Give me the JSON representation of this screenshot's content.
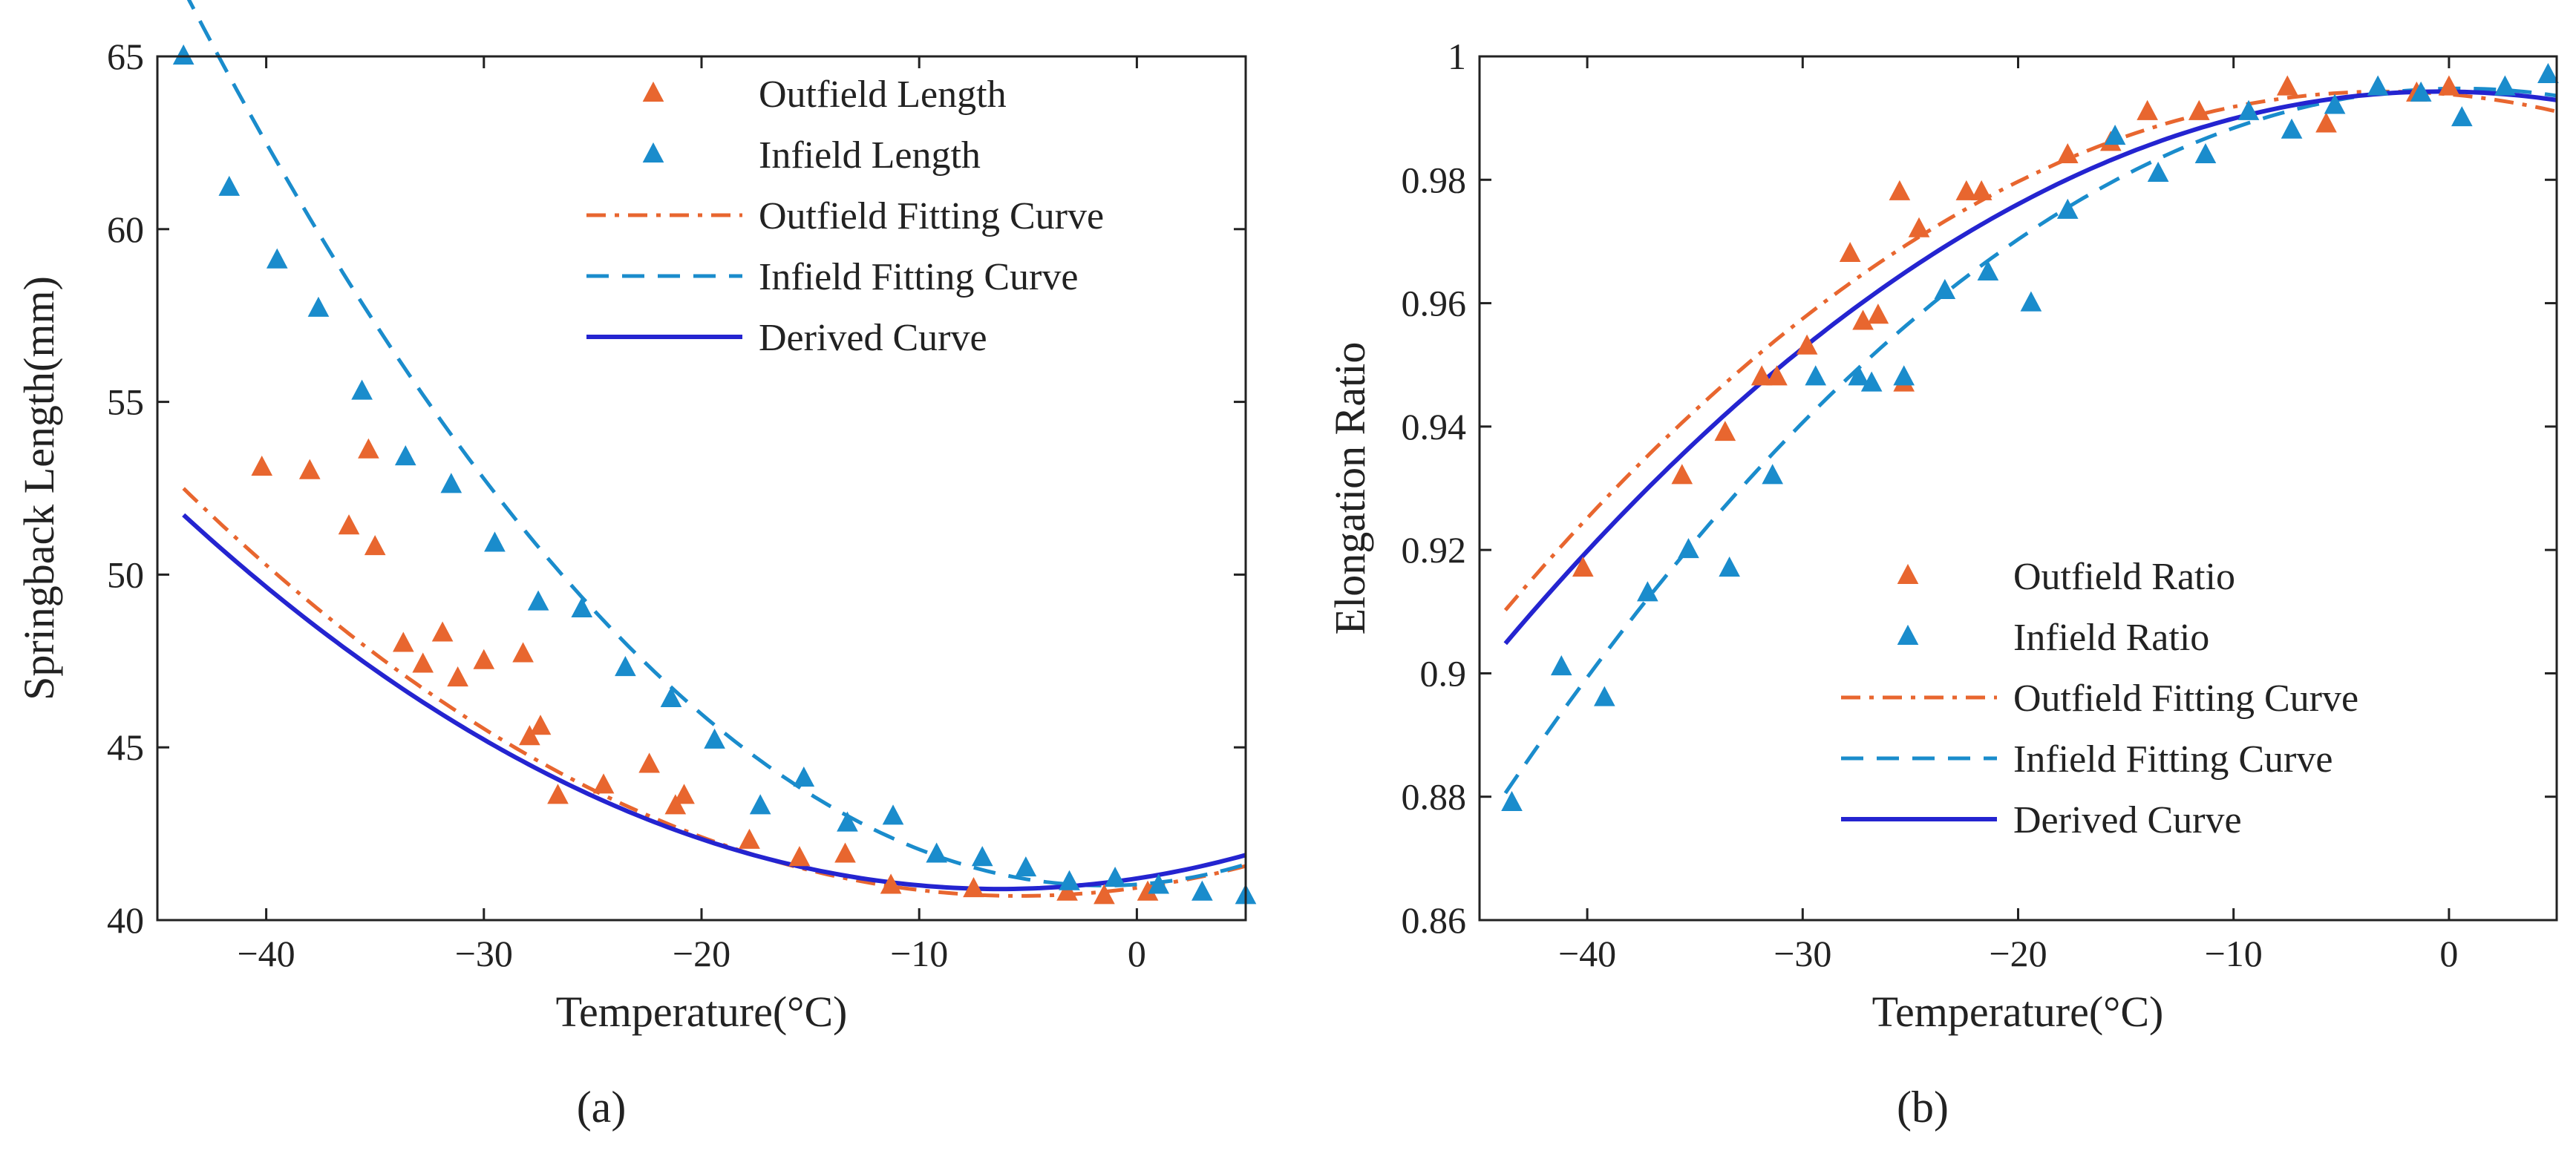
{
  "chart_data": [
    {
      "type": "scatter",
      "panel_label": "(a)",
      "xlabel": "Temperature(°C)",
      "ylabel": "Springback Length(mm)",
      "xlim": [
        -45,
        5
      ],
      "ylim": [
        40,
        65
      ],
      "xticks": [
        -40,
        -30,
        -20,
        -10,
        0
      ],
      "yticks": [
        40,
        45,
        50,
        55,
        60,
        65
      ],
      "legend_position": "top-right",
      "series": [
        {
          "name": "Outfield Length",
          "kind": "markers",
          "color": "#e8662f",
          "x": [
            -40.2,
            -38,
            -36.2,
            -35.3,
            -35,
            -33.7,
            -32.8,
            -31.9,
            -31.2,
            -30,
            -28.2,
            -27.9,
            -27.4,
            -26.6,
            -24.5,
            -22.4,
            -21.2,
            -20.8,
            -17.8,
            -15.5,
            -13.4,
            -11.3,
            -7.5,
            -3.2,
            -1.5,
            0.5
          ],
          "y": [
            53.1,
            53,
            51.4,
            53.6,
            50.8,
            48,
            47.4,
            48.3,
            47,
            47.5,
            47.7,
            45.3,
            45.6,
            43.6,
            43.9,
            44.5,
            43.3,
            43.6,
            42.3,
            41.8,
            41.9,
            41,
            40.9,
            40.8,
            40.7,
            40.8
          ]
        },
        {
          "name": "Infield Length",
          "kind": "markers",
          "color": "#1a8ccc",
          "x": [
            -43.8,
            -41.7,
            -39.5,
            -37.6,
            -35.6,
            -33.6,
            -31.5,
            -29.5,
            -27.5,
            -25.5,
            -23.5,
            -21.4,
            -19.4,
            -17.3,
            -15.3,
            -13.3,
            -11.2,
            -9.2,
            -7.1,
            -5.1,
            -3.1,
            -1,
            1,
            3,
            5
          ],
          "y": [
            65,
            61.2,
            59.1,
            57.7,
            55.3,
            53.4,
            52.6,
            50.9,
            49.2,
            49,
            47.3,
            46.4,
            45.2,
            43.3,
            44.1,
            42.8,
            43,
            41.9,
            41.8,
            41.5,
            41.1,
            41.2,
            41,
            40.8,
            40.7
          ]
        },
        {
          "name": "Outfield Fitting Curve",
          "kind": "dashdot",
          "color": "#e8662f",
          "fit": {
            "a": 0.008,
            "x0": -5.4,
            "c": 40.7
          }
        },
        {
          "name": "Infield Fitting Curve",
          "kind": "dashed",
          "color": "#1a8ccc",
          "fit": {
            "a": 0.0145,
            "x0": -1.5,
            "c": 41.0
          }
        },
        {
          "name": "Derived Curve",
          "kind": "solid",
          "color": "#2424d0",
          "fit": {
            "a": 0.0077,
            "x0": -6.3,
            "c": 40.9
          }
        }
      ]
    },
    {
      "type": "scatter",
      "panel_label": "(b)",
      "xlabel": "Temperature(°C)",
      "ylabel": "Elongation Ratio",
      "xlim": [
        -45,
        5
      ],
      "ylim": [
        0.86,
        1
      ],
      "xticks": [
        -40,
        -30,
        -20,
        -10,
        0
      ],
      "yticks": [
        0.86,
        0.88,
        0.9,
        0.92,
        0.94,
        0.96,
        0.98,
        1
      ],
      "ytick_labels": [
        "0.86",
        "0.88",
        "0.9",
        "0.92",
        "0.94",
        "0.96",
        "0.98",
        "1"
      ],
      "legend_position": "bottom-right",
      "series": [
        {
          "name": "Outfield Ratio",
          "kind": "markers",
          "color": "#e8662f",
          "x": [
            -40.2,
            -35.6,
            -33.6,
            -31.9,
            -31.2,
            -29.8,
            -27.8,
            -27.2,
            -26.5,
            -25.5,
            -25.3,
            -24.6,
            -22.4,
            -21.7,
            -17.7,
            -15.7,
            -14,
            -11.6,
            -7.5,
            -5.7,
            -1.5,
            0
          ],
          "y": [
            0.917,
            0.932,
            0.939,
            0.948,
            0.948,
            0.953,
            0.968,
            0.957,
            0.958,
            0.978,
            0.947,
            0.972,
            0.978,
            0.978,
            0.984,
            0.986,
            0.991,
            0.991,
            0.995,
            0.989,
            0.994,
            0.995
          ]
        },
        {
          "name": "Infield Ratio",
          "kind": "markers",
          "color": "#1a8ccc",
          "x": [
            -43.5,
            -41.2,
            -39.2,
            -37.2,
            -35.3,
            -33.4,
            -31.4,
            -29.4,
            -27.4,
            -26.8,
            -25.3,
            -23.4,
            -21.4,
            -19.4,
            -17.7,
            -15.5,
            -13.5,
            -11.3,
            -9.3,
            -7.3,
            -5.3,
            -3.3,
            -1.3,
            0.6,
            2.6,
            4.6
          ],
          "y": [
            0.879,
            0.901,
            0.896,
            0.913,
            0.92,
            0.917,
            0.932,
            0.948,
            0.948,
            0.947,
            0.948,
            0.962,
            0.965,
            0.96,
            0.975,
            0.987,
            0.981,
            0.984,
            0.991,
            0.988,
            0.992,
            0.995,
            0.994,
            0.99,
            0.995,
            0.997
          ]
        },
        {
          "name": "Outfield Fitting Curve",
          "kind": "dashdot",
          "color": "#e8662f",
          "fit": {
            "a": -5.05e-05,
            "x0": -3.0,
            "c": 0.9943
          }
        },
        {
          "name": "Infield Fitting Curve",
          "kind": "dashed",
          "color": "#1a8ccc",
          "fit": {
            "a": -5.82e-05,
            "x0": 0.5,
            "c": 0.9948
          }
        },
        {
          "name": "Derived Curve",
          "kind": "solid",
          "color": "#2424d0",
          "fit": {
            "a": -4.75e-05,
            "x0": -0.4,
            "c": 0.9943
          }
        }
      ]
    }
  ]
}
